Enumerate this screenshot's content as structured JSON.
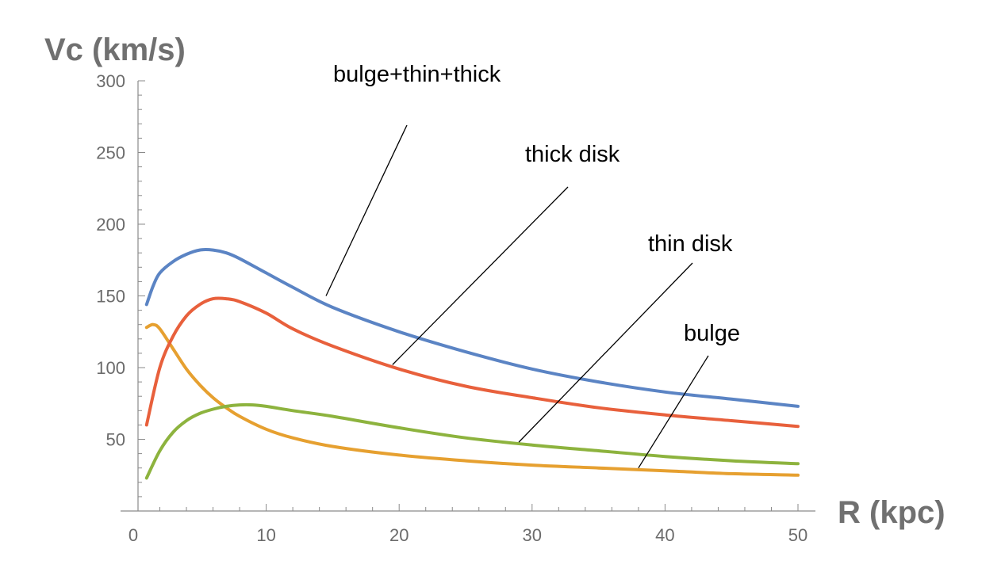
{
  "chart_data": {
    "type": "line",
    "xlabel": "R (kpc)",
    "ylabel": "Vc (km/s)",
    "xlim": [
      0,
      51
    ],
    "ylim": [
      0,
      300
    ],
    "x_ticks": [
      0,
      10,
      20,
      30,
      40,
      50
    ],
    "y_ticks": [
      50,
      100,
      150,
      200,
      250,
      300
    ],
    "grid": false,
    "legend": "none",
    "series": [
      {
        "name": "bulge+thin+thick",
        "color": "#5b84c4",
        "x": [
          1,
          1.5,
          2,
          3,
          4,
          5,
          6,
          7,
          8,
          10,
          12,
          15,
          20,
          25,
          30,
          35,
          40,
          45,
          50
        ],
        "y": [
          144,
          157,
          166,
          174,
          179,
          182,
          182,
          180,
          176,
          166,
          156,
          142,
          125,
          111,
          99,
          90,
          83,
          78,
          73
        ]
      },
      {
        "name": "thick disk",
        "color": "#e8603c",
        "x": [
          1,
          2,
          3,
          4,
          5,
          6,
          7,
          8,
          10,
          12,
          15,
          20,
          25,
          30,
          35,
          40,
          45,
          50
        ],
        "y": [
          60,
          100,
          122,
          136,
          144,
          148,
          148,
          146,
          138,
          127,
          115,
          99,
          87,
          79,
          72,
          67,
          63,
          59
        ]
      },
      {
        "name": "thin disk",
        "color": "#8db33e",
        "x": [
          1,
          2,
          3,
          4,
          5,
          6,
          7,
          8,
          9,
          10,
          12,
          15,
          20,
          25,
          30,
          35,
          40,
          45,
          50
        ],
        "y": [
          23,
          42,
          55,
          63,
          68,
          71,
          73,
          74,
          74,
          73,
          70,
          66,
          58,
          51,
          46,
          42,
          38,
          35,
          33
        ]
      },
      {
        "name": "bulge",
        "color": "#e6a030",
        "x": [
          1,
          1.5,
          2,
          3,
          4,
          5,
          6,
          7,
          8,
          10,
          12,
          15,
          20,
          25,
          30,
          35,
          40,
          45,
          50
        ],
        "y": [
          128,
          130,
          127,
          113,
          99,
          88,
          79,
          72,
          66,
          57,
          51,
          45,
          39,
          35,
          32,
          30,
          28,
          26,
          25
        ]
      }
    ],
    "annotations": [
      {
        "text": "bulge+thin+thick",
        "series": 0,
        "point_x": 14.5,
        "point_y": 150
      },
      {
        "text": "thick disk",
        "series": 1,
        "point_x": 19.5,
        "point_y": 102
      },
      {
        "text": "thin disk",
        "series": 2,
        "point_x": 29,
        "point_y": 48
      },
      {
        "text": "bulge",
        "series": 3,
        "point_x": 38,
        "point_y": 30
      }
    ]
  }
}
